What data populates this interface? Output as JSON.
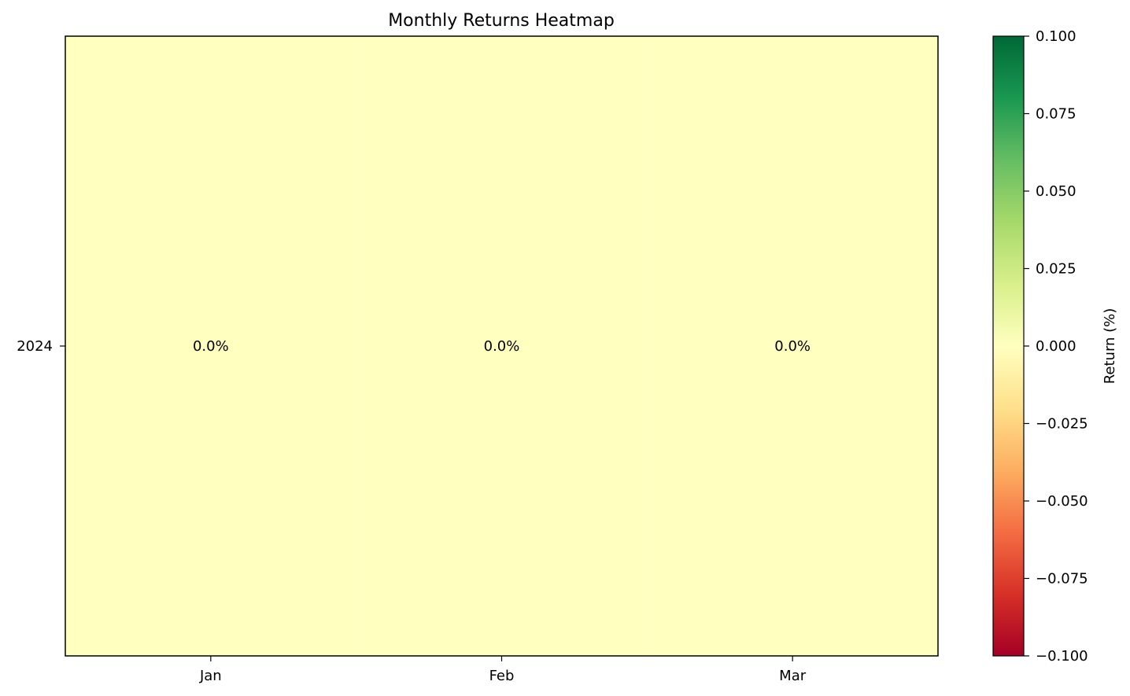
{
  "chart_data": {
    "type": "heatmap",
    "title": "Monthly Returns Heatmap",
    "x_categories": [
      "Jan",
      "Feb",
      "Mar"
    ],
    "y_categories": [
      "2024"
    ],
    "values": [
      [
        0.0,
        0.0,
        0.0
      ]
    ],
    "cell_labels": [
      [
        "0.0%",
        "0.0%",
        "0.0%"
      ]
    ],
    "colormap": "RdYlGn",
    "color_range": [
      -0.1,
      0.1
    ],
    "colorbar": {
      "label": "Return (%)",
      "ticks": [
        0.1,
        0.075,
        0.05,
        0.025,
        0.0,
        -0.025,
        -0.05,
        -0.075,
        -0.1
      ],
      "tick_labels": [
        "0.100",
        "0.075",
        "0.050",
        "0.025",
        "0.000",
        "−0.025",
        "−0.050",
        "−0.075",
        "−0.100"
      ]
    },
    "colormap_stops": [
      "#a50026",
      "#d73027",
      "#f46d43",
      "#fdae61",
      "#fee08b",
      "#ffffbf",
      "#d9ef8b",
      "#a6d96a",
      "#66bd63",
      "#1a9850",
      "#006837"
    ],
    "cell_color": "#ffffbf"
  }
}
